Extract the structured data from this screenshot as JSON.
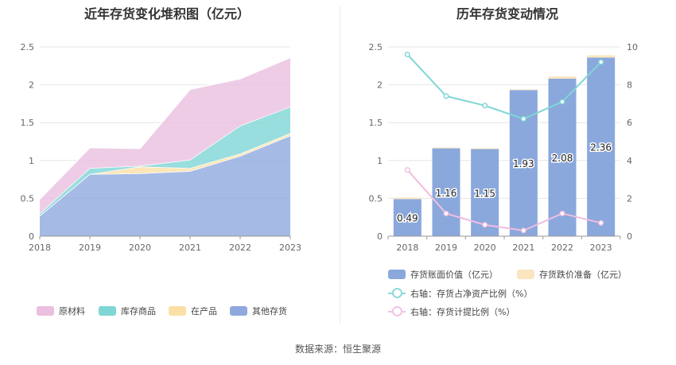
{
  "left_title": "近年存货变化堆积图（亿元）",
  "right_title": "历年存货变动情况",
  "source": "数据来源：恒生聚源",
  "left_legend": [
    {
      "label": "原材料",
      "color": "#eabfe0"
    },
    {
      "label": "库存商品",
      "color": "#7fd6d6"
    },
    {
      "label": "在产品",
      "color": "#fbe0a6"
    },
    {
      "label": "其他存货",
      "color": "#8fa9de"
    }
  ],
  "right_legend": [
    {
      "label": "存货账面价值（亿元）",
      "color": "#8aa8dc"
    },
    {
      "label": "存货跌价准备（亿元）",
      "color": "#fbe5c0"
    },
    {
      "label": "右轴：存货占净资产比例（%）",
      "color": "#7fd6d6"
    },
    {
      "label": "右轴：存货计提比例（%）",
      "color": "#f0bde0"
    }
  ],
  "chart_data": [
    {
      "type": "area",
      "title": "近年存货变化堆积图（亿元）",
      "categories": [
        "2018",
        "2019",
        "2020",
        "2021",
        "2022",
        "2023"
      ],
      "ylim": [
        0,
        2.5
      ],
      "yticks": [
        "0",
        "0.5",
        "1",
        "1.5",
        "2",
        "2.5"
      ],
      "stacked": true,
      "series": [
        {
          "name": "其他存货",
          "color": "#8fa9de",
          "values": [
            0.27,
            0.82,
            0.83,
            0.86,
            1.06,
            1.33
          ]
        },
        {
          "name": "在产品",
          "color": "#fbe0a6",
          "values": [
            0.0,
            0.0,
            0.09,
            0.04,
            0.03,
            0.03
          ]
        },
        {
          "name": "库存商品",
          "color": "#7fd6d6",
          "values": [
            0.03,
            0.08,
            0.01,
            0.11,
            0.37,
            0.35
          ]
        },
        {
          "name": "原材料",
          "color": "#eabfe0",
          "values": [
            0.19,
            0.27,
            0.23,
            0.93,
            0.62,
            0.65
          ]
        }
      ],
      "grid": true,
      "legend": "bottom"
    },
    {
      "type": "bar",
      "title": "历年存货变动情况",
      "categories": [
        "2018",
        "2019",
        "2020",
        "2021",
        "2022",
        "2023"
      ],
      "ylim": [
        0,
        2.5
      ],
      "yticks": [
        "0",
        "0.5",
        "1",
        "1.5",
        "2",
        "2.5"
      ],
      "y2lim": [
        0,
        10
      ],
      "y2ticks": [
        "0",
        "2",
        "4",
        "6",
        "8",
        "10"
      ],
      "series": [
        {
          "name": "存货账面价值（亿元）",
          "type": "bar",
          "axis": "left",
          "color": "#8aa8dc",
          "values": [
            0.49,
            1.16,
            1.15,
            1.93,
            2.08,
            2.36
          ],
          "labels": [
            "0.49",
            "1.16",
            "1.15",
            "1.93",
            "2.08",
            "2.36"
          ]
        },
        {
          "name": "存货跌价准备（亿元）",
          "type": "bar",
          "axis": "left",
          "stacked": true,
          "color": "#fbe5c0",
          "values": [
            0.02,
            0.01,
            0.01,
            0.01,
            0.03,
            0.03
          ]
        },
        {
          "name": "右轴：存货占净资产比例（%）",
          "type": "line",
          "axis": "right",
          "color": "#7fd6d6",
          "values": [
            9.6,
            7.4,
            6.9,
            6.2,
            7.1,
            9.2
          ]
        },
        {
          "name": "右轴：存货计提比例（%）",
          "type": "line",
          "axis": "right",
          "color": "#f0bde0",
          "values": [
            3.5,
            1.2,
            0.6,
            0.3,
            1.2,
            0.7
          ]
        }
      ],
      "grid": true,
      "legend": "bottom"
    }
  ]
}
